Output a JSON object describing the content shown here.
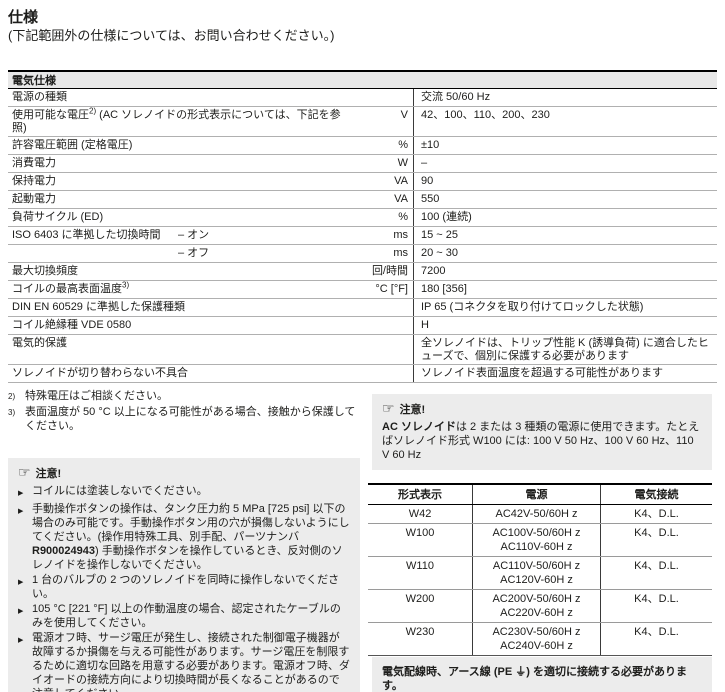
{
  "page": {
    "title": "仕様",
    "subtitle": "(下記範囲外の仕様については、お問い合わせください。)"
  },
  "colors": {
    "text": "#1d1d1b",
    "table_header_bg": "#e8e8e8",
    "note_box_bg": "#ececec",
    "rule_gray": "#b0b0b0",
    "rule_black": "#000000"
  },
  "icons": {
    "note-hand-icon": "☞",
    "bullet-icon": "▶",
    "earth-ground-icon": "⏚"
  },
  "spec_table": {
    "header": "電気仕様",
    "rows": [
      {
        "label": "電源の種類",
        "sup": "",
        "label2": "",
        "sub": "",
        "unit": "",
        "value": "交流 50/60 Hz"
      },
      {
        "label": "使用可能な電圧",
        "sup": "2)",
        "label2": " (AC ソレノイドの形式表示については、下記を参照)",
        "sub": "",
        "unit": "V",
        "value": "42、100、110、200、230"
      },
      {
        "label": "許容電圧範囲 (定格電圧)",
        "sup": "",
        "label2": "",
        "sub": "",
        "unit": "%",
        "value": "±10"
      },
      {
        "label": "消費電力",
        "sup": "",
        "label2": "",
        "sub": "",
        "unit": "W",
        "value": "–"
      },
      {
        "label": "保持電力",
        "sup": "",
        "label2": "",
        "sub": "",
        "unit": "VA",
        "value": "90"
      },
      {
        "label": "起動電力",
        "sup": "",
        "label2": "",
        "sub": "",
        "unit": "VA",
        "value": "550"
      },
      {
        "label": "負荷サイクル (ED)",
        "sup": "",
        "label2": "",
        "sub": "",
        "unit": "%",
        "value": "100 (連続)"
      },
      {
        "label": "ISO 6403 に準拠した切換時間",
        "sup": "",
        "label2": "",
        "sub": "– オン",
        "unit": "ms",
        "value": "15 ~ 25"
      },
      {
        "label": "",
        "sup": "",
        "label2": "",
        "sub": "– オフ",
        "unit": "ms",
        "value": "20 ~ 30"
      },
      {
        "label": "最大切換頻度",
        "sup": "",
        "label2": "",
        "sub": "",
        "unit": "回/時間",
        "value": "7200"
      },
      {
        "label": "コイルの最高表面温度",
        "sup": "3)",
        "label2": "",
        "sub": "",
        "unit": "°C [°F]",
        "value": "180 [356]"
      },
      {
        "label": "DIN EN 60529 に準拠した保護種類",
        "sup": "",
        "label2": "",
        "sub": "",
        "unit": "",
        "value": "IP 65 (コネクタを取り付けてロックした状態)"
      },
      {
        "label": "コイル絶縁種 VDE 0580",
        "sup": "",
        "label2": "",
        "sub": "",
        "unit": "",
        "value": "H"
      },
      {
        "label": "電気的保護",
        "sup": "",
        "label2": "",
        "sub": "",
        "unit": "",
        "value": "全ソレノイドは、トリップ性能 K (誘導負荷) に適合したヒューズで、個別に保護する必要があります"
      },
      {
        "label": "ソレノイドが切り替わらない不具合",
        "sup": "",
        "label2": "",
        "sub": "",
        "unit": "",
        "value": "ソレノイド表面温度を超過する可能性があります"
      }
    ]
  },
  "footnotes": [
    {
      "marker": "2)",
      "text": "特殊電圧はご相談ください。"
    },
    {
      "marker": "3)",
      "text": "表面温度が 50 °C 以上になる可能性がある場合、接触から保護してください。"
    }
  ],
  "note_left": {
    "title": "注意!",
    "bullets": [
      {
        "pre": "コイルには塗装しないでください。",
        "bold": "",
        "post": ""
      },
      {
        "pre": "手動操作ボタンの操作は、タンク圧力約 5 MPa [725 psi] 以下の場合のみ可能です。手動操作ボタン用の穴が損傷しないようにしてください。(操作用特殊工具、別手配、パーツナンバ ",
        "bold": "R900024943",
        "post": ") 手動操作ボタンを操作しているとき、反対側のソレノイドを操作しないでください。"
      },
      {
        "pre": "1 台のバルブの 2 つのソレノイドを同時に操作しないでください。",
        "bold": "",
        "post": ""
      },
      {
        "pre": "105 °C [221 °F] 以上の作動温度の場合、認定されたケーブルのみを使用してください。",
        "bold": "",
        "post": ""
      },
      {
        "pre": "電源オフ時、サージ電圧が発生し、接続された制御電子機器が故障するか損傷を与える可能性があります。サージ電圧を制限するために適切な回路を用意する必要があります。電源オフ時、ダイオードの接続方向により切換時間が長くなることがあるので注意してください。",
        "bold": "",
        "post": ""
      }
    ]
  },
  "note_right": {
    "title": "注意!",
    "bold_lead": "AC ソレノイド",
    "text": "は 2 または 3 種類の電源に使用できます。たとえばソレノイド形式 W100 には: 100 V 50 Hz、100 V 60 Hz、110 V 60 Hz"
  },
  "model_table": {
    "headers": [
      "形式表示",
      "電源",
      "電気接続"
    ],
    "rows": [
      {
        "model": "W42",
        "power1": "AC42V-50/60H z",
        "power2": "",
        "connection": "K4、D.L."
      },
      {
        "model": "W100",
        "power1": "AC100V-50/60H z",
        "power2": "AC110V-60H z",
        "connection": "K4、D.L."
      },
      {
        "model": "W110",
        "power1": "AC110V-50/60H z",
        "power2": "AC120V-60H z",
        "connection": "K4、D.L."
      },
      {
        "model": "W200",
        "power1": "AC200V-50/60H z",
        "power2": "AC220V-60H z",
        "connection": "K4、D.L."
      },
      {
        "model": "W230",
        "power1": "AC230V-50/60H z",
        "power2": "AC240V-60H z",
        "connection": "K4、D.L."
      }
    ]
  },
  "ground_note": {
    "pre": "電気配線時、アース線 (PE ",
    "post": ") を適切に接続する必要があります。"
  }
}
